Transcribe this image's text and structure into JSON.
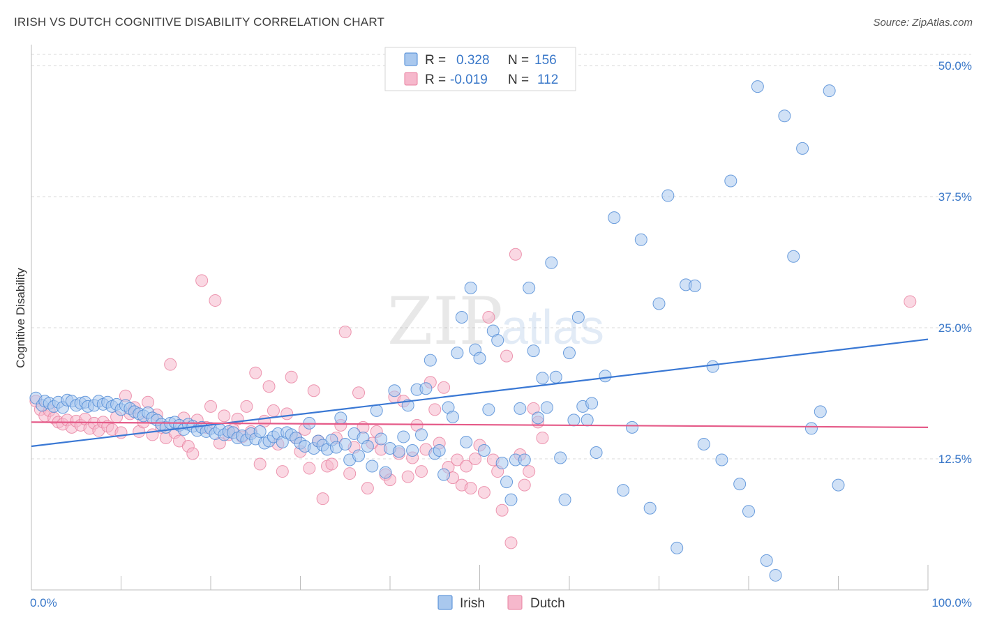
{
  "title": "IRISH VS DUTCH COGNITIVE DISABILITY CORRELATION CHART",
  "source": "Source: ZipAtlas.com",
  "watermark": {
    "zip": "ZIP",
    "atlas": "atlas"
  },
  "colors": {
    "irish_fill": "#a9c8ee",
    "irish_stroke": "#4a87d4",
    "irish_line": "#3a78d4",
    "dutch_fill": "#f6b8cc",
    "dutch_stroke": "#e8809f",
    "dutch_line": "#e55a88",
    "tick_label": "#3a78c9",
    "grid": "#d8d8d8"
  },
  "legend": {
    "rows": [
      {
        "r_label": "R =",
        "r_value": "0.328",
        "n_label": "N =",
        "n_value": "156"
      },
      {
        "r_label": "R =",
        "r_value": "-0.019",
        "n_label": "N =",
        "n_value": "112"
      }
    ],
    "bottom": [
      "Irish",
      "Dutch"
    ]
  },
  "chart_data": {
    "type": "scatter",
    "xlabel": "",
    "ylabel": "Cognitive Disability",
    "xlim": [
      0,
      100
    ],
    "ylim": [
      0,
      52
    ],
    "x_tick_labels": [
      "0.0%",
      "100.0%"
    ],
    "y_ticks": [
      12.5,
      25.0,
      37.5,
      50.0
    ],
    "y_tick_labels": [
      "12.5%",
      "25.0%",
      "37.5%",
      "50.0%"
    ],
    "grid": "horizontal dashed",
    "legend_position": "top-center",
    "series": [
      {
        "name": "Irish",
        "trend": [
          [
            0,
            13.7
          ],
          [
            100,
            23.9
          ]
        ],
        "points": [
          [
            0.5,
            18.3
          ],
          [
            1.2,
            17.6
          ],
          [
            1.5,
            18.0
          ],
          [
            2.0,
            17.8
          ],
          [
            2.5,
            17.5
          ],
          [
            3.0,
            17.9
          ],
          [
            3.5,
            17.4
          ],
          [
            4.0,
            18.1
          ],
          [
            4.5,
            18.0
          ],
          [
            5.0,
            17.6
          ],
          [
            5.5,
            17.8
          ],
          [
            6.0,
            17.9
          ],
          [
            6.3,
            17.5
          ],
          [
            7.0,
            17.6
          ],
          [
            7.5,
            18.0
          ],
          [
            8.0,
            17.7
          ],
          [
            8.5,
            17.9
          ],
          [
            9.0,
            17.5
          ],
          [
            9.5,
            17.7
          ],
          [
            10.0,
            17.2
          ],
          [
            10.5,
            17.6
          ],
          [
            11.0,
            17.3
          ],
          [
            11.5,
            17.0
          ],
          [
            12.0,
            16.8
          ],
          [
            12.5,
            16.6
          ],
          [
            13.0,
            16.9
          ],
          [
            13.5,
            16.4
          ],
          [
            14.0,
            16.2
          ],
          [
            14.5,
            15.8
          ],
          [
            15.0,
            15.5
          ],
          [
            15.5,
            15.9
          ],
          [
            16.0,
            16.0
          ],
          [
            16.5,
            15.7
          ],
          [
            17.0,
            15.3
          ],
          [
            17.5,
            15.8
          ],
          [
            18.0,
            15.6
          ],
          [
            18.5,
            15.2
          ],
          [
            19.0,
            15.5
          ],
          [
            19.5,
            15.1
          ],
          [
            20.0,
            15.4
          ],
          [
            20.5,
            14.9
          ],
          [
            21.0,
            15.3
          ],
          [
            21.5,
            14.8
          ],
          [
            22.0,
            15.1
          ],
          [
            22.5,
            15.0
          ],
          [
            23.0,
            14.5
          ],
          [
            23.5,
            14.7
          ],
          [
            24.0,
            14.3
          ],
          [
            24.5,
            14.9
          ],
          [
            25.0,
            14.4
          ],
          [
            25.5,
            15.1
          ],
          [
            26.0,
            14.0
          ],
          [
            26.5,
            14.2
          ],
          [
            27.0,
            14.6
          ],
          [
            27.5,
            14.9
          ],
          [
            28.0,
            14.1
          ],
          [
            28.5,
            15.0
          ],
          [
            29.0,
            14.8
          ],
          [
            29.5,
            14.5
          ],
          [
            30.0,
            14.0
          ],
          [
            30.5,
            13.7
          ],
          [
            31.0,
            15.9
          ],
          [
            31.5,
            13.5
          ],
          [
            32.0,
            14.2
          ],
          [
            32.5,
            13.8
          ],
          [
            33.0,
            13.4
          ],
          [
            33.5,
            14.3
          ],
          [
            34.0,
            13.6
          ],
          [
            34.5,
            16.4
          ],
          [
            35.0,
            13.9
          ],
          [
            35.5,
            12.4
          ],
          [
            36.0,
            14.9
          ],
          [
            36.5,
            12.8
          ],
          [
            37.0,
            14.5
          ],
          [
            37.5,
            13.7
          ],
          [
            38.0,
            11.8
          ],
          [
            38.5,
            17.1
          ],
          [
            39.0,
            14.4
          ],
          [
            39.5,
            11.2
          ],
          [
            40.0,
            13.5
          ],
          [
            40.5,
            19.0
          ],
          [
            41.0,
            13.2
          ],
          [
            41.5,
            14.6
          ],
          [
            42.0,
            17.6
          ],
          [
            42.5,
            13.3
          ],
          [
            43.0,
            19.1
          ],
          [
            43.5,
            14.8
          ],
          [
            44.0,
            19.2
          ],
          [
            44.5,
            21.9
          ],
          [
            45.0,
            13.0
          ],
          [
            45.5,
            13.3
          ],
          [
            46.0,
            11.0
          ],
          [
            46.5,
            17.4
          ],
          [
            47.0,
            16.5
          ],
          [
            47.5,
            22.6
          ],
          [
            48.0,
            26.0
          ],
          [
            48.5,
            14.1
          ],
          [
            49.0,
            28.8
          ],
          [
            49.5,
            22.9
          ],
          [
            50.0,
            22.1
          ],
          [
            50.5,
            13.3
          ],
          [
            51.0,
            17.2
          ],
          [
            51.5,
            24.7
          ],
          [
            52.0,
            23.8
          ],
          [
            52.5,
            12.1
          ],
          [
            53.0,
            10.3
          ],
          [
            53.5,
            8.6
          ],
          [
            54.0,
            12.4
          ],
          [
            54.5,
            17.3
          ],
          [
            55.0,
            12.4
          ],
          [
            55.5,
            28.8
          ],
          [
            56.0,
            22.8
          ],
          [
            56.5,
            16.4
          ],
          [
            57.0,
            20.2
          ],
          [
            57.5,
            17.4
          ],
          [
            58.0,
            31.2
          ],
          [
            58.5,
            20.3
          ],
          [
            59.0,
            12.6
          ],
          [
            59.5,
            8.6
          ],
          [
            60.0,
            22.6
          ],
          [
            60.5,
            16.2
          ],
          [
            61.0,
            26.0
          ],
          [
            61.5,
            17.5
          ],
          [
            62.0,
            16.2
          ],
          [
            62.5,
            17.8
          ],
          [
            63.0,
            13.1
          ],
          [
            64.0,
            20.4
          ],
          [
            65.0,
            35.5
          ],
          [
            66.0,
            9.5
          ],
          [
            67.0,
            15.5
          ],
          [
            68.0,
            33.4
          ],
          [
            69.0,
            7.8
          ],
          [
            70.0,
            27.3
          ],
          [
            71.0,
            37.6
          ],
          [
            72.0,
            4.0
          ],
          [
            73.0,
            29.1
          ],
          [
            74.0,
            29.0
          ],
          [
            75.0,
            13.9
          ],
          [
            76.0,
            21.3
          ],
          [
            77.0,
            12.4
          ],
          [
            78.0,
            39.0
          ],
          [
            79.0,
            10.1
          ],
          [
            80.0,
            7.5
          ],
          [
            81.0,
            48.0
          ],
          [
            82.0,
            2.8
          ],
          [
            83.0,
            1.4
          ],
          [
            84.0,
            45.2
          ],
          [
            85.0,
            31.8
          ],
          [
            86.0,
            42.1
          ],
          [
            87.0,
            15.4
          ],
          [
            88.0,
            17.0
          ],
          [
            89.0,
            47.6
          ],
          [
            90.0,
            10.0
          ]
        ]
      },
      {
        "name": "Dutch",
        "trend": [
          [
            0,
            16.0
          ],
          [
            100,
            15.5
          ]
        ],
        "points": [
          [
            0.5,
            18.0
          ],
          [
            1.0,
            17.2
          ],
          [
            1.5,
            16.6
          ],
          [
            2.0,
            17.1
          ],
          [
            2.5,
            16.4
          ],
          [
            3.0,
            16.0
          ],
          [
            3.5,
            15.8
          ],
          [
            4.0,
            16.2
          ],
          [
            4.5,
            15.5
          ],
          [
            5.0,
            16.1
          ],
          [
            5.5,
            15.7
          ],
          [
            6.0,
            16.3
          ],
          [
            6.5,
            15.4
          ],
          [
            7.0,
            15.9
          ],
          [
            7.5,
            15.2
          ],
          [
            8.0,
            16.0
          ],
          [
            8.5,
            15.6
          ],
          [
            9.0,
            15.3
          ],
          [
            9.5,
            16.5
          ],
          [
            10.0,
            15.0
          ],
          [
            10.5,
            18.5
          ],
          [
            11.0,
            16.8
          ],
          [
            11.5,
            17.4
          ],
          [
            12.0,
            15.1
          ],
          [
            12.5,
            16.0
          ],
          [
            13.0,
            17.9
          ],
          [
            13.5,
            14.8
          ],
          [
            14.0,
            16.7
          ],
          [
            14.5,
            15.5
          ],
          [
            15.0,
            14.5
          ],
          [
            15.5,
            21.5
          ],
          [
            16.0,
            15.0
          ],
          [
            16.5,
            14.2
          ],
          [
            17.0,
            16.4
          ],
          [
            17.5,
            13.7
          ],
          [
            18.0,
            13.0
          ],
          [
            18.5,
            16.2
          ],
          [
            19.0,
            29.5
          ],
          [
            19.5,
            15.5
          ],
          [
            20.0,
            17.5
          ],
          [
            20.5,
            27.6
          ],
          [
            21.0,
            14.0
          ],
          [
            21.5,
            16.6
          ],
          [
            22.0,
            14.8
          ],
          [
            22.5,
            15.3
          ],
          [
            23.0,
            16.3
          ],
          [
            23.5,
            14.6
          ],
          [
            24.0,
            17.5
          ],
          [
            24.5,
            15.1
          ],
          [
            25.0,
            20.7
          ],
          [
            25.5,
            12.0
          ],
          [
            26.0,
            16.1
          ],
          [
            26.5,
            19.4
          ],
          [
            27.0,
            17.1
          ],
          [
            27.5,
            13.9
          ],
          [
            28.0,
            11.3
          ],
          [
            28.5,
            16.8
          ],
          [
            29.0,
            20.3
          ],
          [
            29.5,
            14.5
          ],
          [
            30.0,
            13.2
          ],
          [
            30.5,
            15.3
          ],
          [
            31.0,
            11.6
          ],
          [
            31.5,
            19.0
          ],
          [
            32.0,
            14.2
          ],
          [
            32.5,
            8.7
          ],
          [
            33.0,
            11.8
          ],
          [
            33.5,
            12.0
          ],
          [
            34.0,
            14.5
          ],
          [
            34.5,
            15.7
          ],
          [
            35.0,
            24.6
          ],
          [
            35.5,
            11.1
          ],
          [
            36.0,
            13.6
          ],
          [
            36.5,
            18.8
          ],
          [
            37.0,
            15.5
          ],
          [
            37.5,
            9.7
          ],
          [
            38.0,
            14.0
          ],
          [
            38.5,
            15.1
          ],
          [
            39.0,
            13.4
          ],
          [
            39.5,
            11.0
          ],
          [
            40.0,
            10.5
          ],
          [
            40.5,
            18.4
          ],
          [
            41.0,
            13.0
          ],
          [
            41.5,
            18.0
          ],
          [
            42.0,
            10.8
          ],
          [
            42.5,
            12.6
          ],
          [
            43.0,
            15.7
          ],
          [
            43.5,
            11.3
          ],
          [
            44.0,
            13.4
          ],
          [
            44.5,
            19.8
          ],
          [
            45.0,
            17.2
          ],
          [
            45.5,
            14.0
          ],
          [
            46.0,
            19.3
          ],
          [
            46.5,
            11.7
          ],
          [
            47.0,
            10.7
          ],
          [
            47.5,
            12.4
          ],
          [
            48.0,
            10.0
          ],
          [
            48.5,
            11.8
          ],
          [
            49.0,
            9.7
          ],
          [
            49.5,
            12.5
          ],
          [
            50.0,
            13.8
          ],
          [
            50.5,
            9.3
          ],
          [
            51.0,
            26.0
          ],
          [
            51.5,
            12.4
          ],
          [
            52.0,
            11.3
          ],
          [
            52.5,
            7.6
          ],
          [
            53.0,
            22.3
          ],
          [
            53.5,
            4.5
          ],
          [
            54.0,
            32.0
          ],
          [
            54.5,
            12.9
          ],
          [
            55.0,
            10.0
          ],
          [
            55.5,
            11.3
          ],
          [
            56.0,
            17.3
          ],
          [
            56.5,
            16.0
          ],
          [
            57.0,
            14.5
          ],
          [
            98.0,
            27.5
          ]
        ]
      }
    ]
  }
}
